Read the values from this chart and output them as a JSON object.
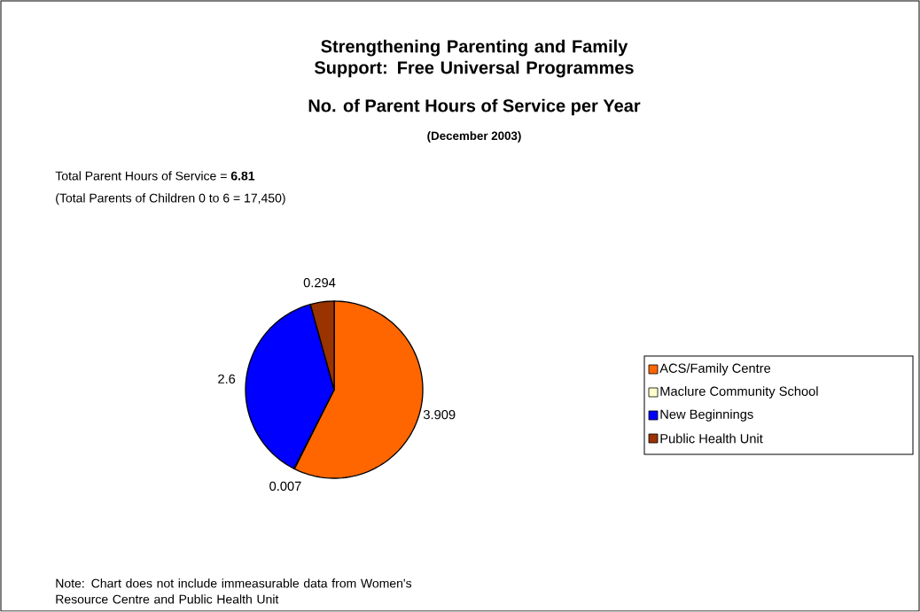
{
  "chart_data": {
    "type": "pie",
    "title": "Strengthening Parenting and Family Support: Free Universal Programmes",
    "subtitle": "No. of Parent Hours of Service per Year",
    "annotations": [
      "(December 2003)",
      "Total Parent Hours of Service = **6.81**",
      "(Total Parents of Children 0 to 6 = 17,450)",
      "Note: Chart does not include immeasurable data from Women's Resource Centre and Public Health Unit"
    ],
    "categories": [
      "ACS/Family Centre",
      "Maclure Community School",
      "New Beginnings",
      "Public Health Unit"
    ],
    "values": [
      3.909,
      0.007,
      2.6,
      0.294
    ],
    "colors": [
      "#ff6600",
      "#ffffcc",
      "#0000ff",
      "#993300"
    ],
    "data_labels": true,
    "legend": "right"
  }
}
